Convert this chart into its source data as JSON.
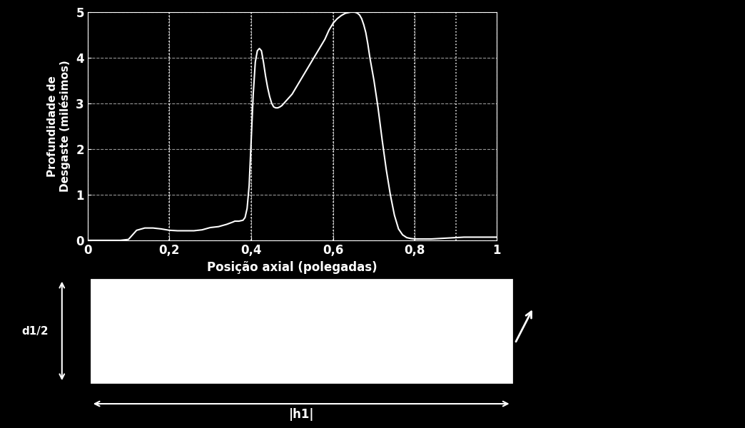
{
  "background_color": "#000000",
  "plot_bg_color": "#000000",
  "line_color": "#ffffff",
  "grid_color": "#ffffff",
  "text_color": "#ffffff",
  "xlabel": "Posição axial (polegadas)",
  "ylabel": "Profundidade de\nDesgaste (milésimos)",
  "xlim": [
    0,
    1
  ],
  "ylim": [
    0,
    5
  ],
  "xticks": [
    0,
    0.2,
    0.4,
    0.6,
    0.8,
    1
  ],
  "yticks": [
    0,
    1,
    2,
    3,
    4,
    5
  ],
  "xtick_labels": [
    "0",
    "0,2",
    "0,4",
    "0,6",
    "0,8",
    "1"
  ],
  "ytick_labels": [
    "0",
    "1",
    "2",
    "3",
    "4",
    "5"
  ],
  "d1_2_label": "d1/2",
  "h1_label": "|h1|"
}
